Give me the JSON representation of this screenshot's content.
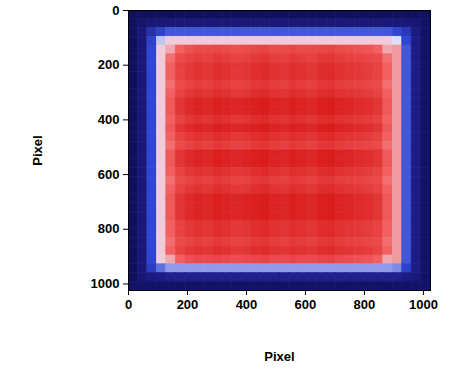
{
  "chart_data": {
    "type": "heatmap",
    "x_label": "Pixel",
    "y_label": "Pixel",
    "xlim": [
      0,
      1024
    ],
    "ylim": [
      0,
      1024
    ],
    "xticks": [
      0,
      200,
      400,
      600,
      800,
      1000
    ],
    "yticks": [
      0,
      200,
      400,
      600,
      800,
      1000
    ],
    "zlim": [
      0,
      100
    ],
    "x_edges": [
      0,
      32,
      64,
      96,
      128,
      160,
      192,
      224,
      256,
      288,
      320,
      352,
      384,
      416,
      448,
      480,
      512,
      544,
      576,
      608,
      640,
      672,
      704,
      736,
      768,
      800,
      832,
      864,
      896,
      928,
      960,
      992,
      1024
    ],
    "y_edges": [
      0,
      32,
      64,
      96,
      128,
      160,
      192,
      224,
      256,
      288,
      320,
      352,
      384,
      416,
      448,
      480,
      512,
      544,
      576,
      608,
      640,
      672,
      704,
      736,
      768,
      800,
      832,
      864,
      896,
      928,
      960,
      992,
      1024
    ],
    "cells": [
      [
        5,
        5,
        5,
        5,
        5,
        5,
        5,
        5,
        5,
        5,
        5,
        5,
        5,
        5,
        5,
        5,
        5,
        5,
        5,
        5,
        5,
        5,
        5,
        5,
        5,
        5,
        5,
        5,
        5,
        5,
        5,
        5
      ],
      [
        5,
        10,
        14,
        15,
        16,
        16,
        16,
        16,
        16,
        16,
        16,
        16,
        16,
        16,
        16,
        16,
        16,
        16,
        16,
        16,
        16,
        16,
        16,
        16,
        16,
        16,
        16,
        16,
        16,
        15,
        14,
        8
      ],
      [
        5,
        14,
        30,
        38,
        42,
        42,
        42,
        42,
        42,
        42,
        42,
        42,
        42,
        42,
        42,
        42,
        42,
        42,
        42,
        42,
        42,
        42,
        42,
        42,
        42,
        42,
        42,
        42,
        40,
        34,
        18,
        8
      ],
      [
        5,
        15,
        38,
        55,
        65,
        65,
        65,
        65,
        65,
        65,
        65,
        65,
        65,
        65,
        65,
        65,
        65,
        65,
        65,
        65,
        65,
        65,
        65,
        65,
        65,
        65,
        65,
        65,
        58,
        40,
        20,
        8
      ],
      [
        5,
        15,
        40,
        65,
        70,
        80,
        84,
        86,
        86,
        87,
        86,
        85,
        86,
        87,
        88,
        86,
        86,
        87,
        86,
        86,
        87,
        88,
        86,
        85,
        84,
        83,
        80,
        70,
        72,
        42,
        20,
        8
      ],
      [
        5,
        15,
        40,
        65,
        78,
        86,
        88,
        90,
        89,
        91,
        90,
        88,
        89,
        91,
        92,
        90,
        89,
        91,
        90,
        89,
        91,
        92,
        90,
        89,
        88,
        87,
        86,
        78,
        72,
        42,
        20,
        8
      ],
      [
        5,
        15,
        40,
        65,
        80,
        88,
        91,
        93,
        92,
        94,
        93,
        91,
        92,
        94,
        95,
        93,
        92,
        94,
        93,
        92,
        94,
        95,
        93,
        92,
        91,
        90,
        88,
        80,
        72,
        42,
        20,
        8
      ],
      [
        5,
        15,
        40,
        65,
        80,
        88,
        91,
        93,
        92,
        94,
        93,
        91,
        92,
        94,
        95,
        93,
        92,
        94,
        93,
        92,
        94,
        95,
        93,
        92,
        91,
        90,
        88,
        80,
        72,
        42,
        20,
        8
      ],
      [
        5,
        15,
        40,
        65,
        78,
        86,
        88,
        90,
        89,
        91,
        90,
        88,
        89,
        91,
        92,
        90,
        89,
        91,
        90,
        89,
        91,
        92,
        90,
        89,
        88,
        87,
        86,
        78,
        72,
        42,
        20,
        8
      ],
      [
        5,
        15,
        40,
        65,
        80,
        88,
        91,
        93,
        92,
        94,
        93,
        91,
        92,
        94,
        95,
        93,
        92,
        94,
        93,
        92,
        94,
        95,
        93,
        92,
        91,
        90,
        88,
        80,
        72,
        42,
        20,
        8
      ],
      [
        5,
        15,
        40,
        65,
        82,
        92,
        95,
        97,
        96,
        98,
        97,
        96,
        97,
        98,
        99,
        97,
        96,
        98,
        97,
        96,
        98,
        99,
        97,
        96,
        95,
        94,
        92,
        82,
        72,
        42,
        20,
        8
      ],
      [
        5,
        15,
        40,
        65,
        82,
        92,
        95,
        97,
        96,
        98,
        97,
        96,
        97,
        98,
        99,
        97,
        96,
        98,
        97,
        96,
        98,
        99,
        97,
        96,
        95,
        94,
        92,
        82,
        72,
        42,
        20,
        8
      ],
      [
        5,
        15,
        40,
        65,
        80,
        88,
        91,
        93,
        92,
        94,
        93,
        91,
        92,
        94,
        95,
        93,
        92,
        94,
        93,
        92,
        94,
        95,
        93,
        92,
        91,
        90,
        88,
        80,
        72,
        42,
        20,
        8
      ],
      [
        5,
        15,
        40,
        65,
        82,
        92,
        95,
        97,
        96,
        98,
        97,
        96,
        97,
        98,
        99,
        97,
        96,
        98,
        97,
        96,
        98,
        99,
        97,
        96,
        95,
        94,
        92,
        82,
        72,
        42,
        20,
        8
      ],
      [
        5,
        15,
        40,
        65,
        80,
        88,
        91,
        93,
        92,
        94,
        93,
        91,
        92,
        94,
        95,
        93,
        92,
        94,
        93,
        92,
        94,
        95,
        93,
        92,
        91,
        90,
        88,
        80,
        72,
        42,
        20,
        8
      ],
      [
        5,
        15,
        40,
        65,
        78,
        86,
        88,
        90,
        89,
        91,
        90,
        88,
        89,
        91,
        92,
        90,
        89,
        91,
        90,
        89,
        91,
        92,
        90,
        89,
        88,
        87,
        86,
        78,
        72,
        42,
        20,
        8
      ],
      [
        5,
        15,
        40,
        65,
        82,
        92,
        95,
        97,
        96,
        98,
        97,
        96,
        97,
        98,
        99,
        97,
        96,
        98,
        97,
        96,
        98,
        99,
        97,
        96,
        95,
        94,
        92,
        82,
        72,
        42,
        20,
        8
      ],
      [
        5,
        15,
        40,
        65,
        82,
        92,
        95,
        97,
        96,
        98,
        97,
        96,
        97,
        98,
        99,
        97,
        96,
        98,
        97,
        96,
        98,
        99,
        97,
        96,
        95,
        94,
        92,
        82,
        72,
        42,
        20,
        8
      ],
      [
        5,
        15,
        40,
        65,
        80,
        88,
        91,
        93,
        92,
        94,
        93,
        91,
        92,
        94,
        95,
        93,
        92,
        94,
        93,
        92,
        94,
        95,
        93,
        92,
        91,
        90,
        88,
        80,
        72,
        42,
        20,
        8
      ],
      [
        5,
        15,
        40,
        65,
        78,
        86,
        88,
        90,
        89,
        91,
        90,
        88,
        89,
        91,
        92,
        90,
        89,
        91,
        90,
        89,
        91,
        92,
        90,
        89,
        88,
        87,
        86,
        78,
        72,
        42,
        20,
        8
      ],
      [
        5,
        15,
        40,
        65,
        80,
        88,
        91,
        93,
        92,
        94,
        93,
        91,
        92,
        94,
        95,
        93,
        92,
        94,
        93,
        92,
        94,
        95,
        93,
        92,
        91,
        90,
        88,
        80,
        72,
        42,
        20,
        8
      ],
      [
        5,
        15,
        40,
        65,
        82,
        92,
        95,
        97,
        96,
        98,
        97,
        96,
        97,
        98,
        99,
        97,
        96,
        98,
        97,
        96,
        98,
        99,
        97,
        96,
        95,
        94,
        92,
        82,
        72,
        42,
        20,
        8
      ],
      [
        5,
        15,
        40,
        65,
        82,
        92,
        95,
        97,
        96,
        98,
        97,
        96,
        97,
        98,
        99,
        97,
        96,
        98,
        97,
        96,
        98,
        99,
        97,
        96,
        95,
        94,
        92,
        82,
        72,
        42,
        20,
        8
      ],
      [
        5,
        15,
        40,
        65,
        82,
        92,
        95,
        97,
        96,
        98,
        97,
        96,
        97,
        98,
        99,
        97,
        96,
        98,
        97,
        96,
        98,
        99,
        97,
        96,
        95,
        94,
        92,
        82,
        72,
        42,
        20,
        8
      ],
      [
        5,
        15,
        40,
        65,
        80,
        88,
        91,
        93,
        92,
        94,
        93,
        91,
        92,
        94,
        95,
        93,
        92,
        94,
        93,
        92,
        94,
        95,
        93,
        92,
        91,
        90,
        88,
        80,
        72,
        42,
        20,
        8
      ],
      [
        5,
        15,
        40,
        65,
        80,
        88,
        91,
        93,
        92,
        94,
        93,
        91,
        92,
        94,
        95,
        93,
        92,
        94,
        93,
        92,
        94,
        95,
        93,
        92,
        91,
        90,
        88,
        80,
        72,
        42,
        20,
        8
      ],
      [
        5,
        15,
        40,
        65,
        78,
        86,
        88,
        90,
        89,
        91,
        90,
        88,
        89,
        91,
        92,
        90,
        89,
        91,
        90,
        89,
        91,
        92,
        90,
        89,
        88,
        87,
        86,
        78,
        72,
        42,
        20,
        8
      ],
      [
        5,
        15,
        40,
        65,
        80,
        88,
        91,
        93,
        92,
        94,
        93,
        91,
        92,
        94,
        95,
        93,
        92,
        94,
        93,
        92,
        94,
        95,
        93,
        92,
        91,
        90,
        88,
        80,
        72,
        42,
        20,
        8
      ],
      [
        5,
        15,
        40,
        65,
        70,
        80,
        84,
        86,
        86,
        87,
        86,
        85,
        86,
        87,
        88,
        86,
        86,
        87,
        86,
        86,
        87,
        88,
        86,
        85,
        84,
        83,
        80,
        70,
        72,
        42,
        20,
        8
      ],
      [
        5,
        15,
        35,
        45,
        50,
        50,
        50,
        50,
        50,
        50,
        50,
        50,
        50,
        50,
        50,
        50,
        50,
        50,
        50,
        50,
        50,
        50,
        50,
        50,
        50,
        50,
        50,
        50,
        48,
        38,
        20,
        8
      ],
      [
        5,
        14,
        18,
        20,
        22,
        22,
        22,
        22,
        22,
        22,
        22,
        22,
        22,
        22,
        22,
        22,
        22,
        22,
        22,
        22,
        22,
        22,
        22,
        22,
        22,
        22,
        22,
        22,
        22,
        20,
        16,
        8
      ],
      [
        8,
        8,
        8,
        8,
        8,
        8,
        8,
        8,
        8,
        8,
        8,
        8,
        8,
        8,
        8,
        8,
        8,
        8,
        8,
        8,
        8,
        8,
        8,
        8,
        8,
        8,
        8,
        8,
        8,
        8,
        8,
        8
      ]
    ]
  }
}
